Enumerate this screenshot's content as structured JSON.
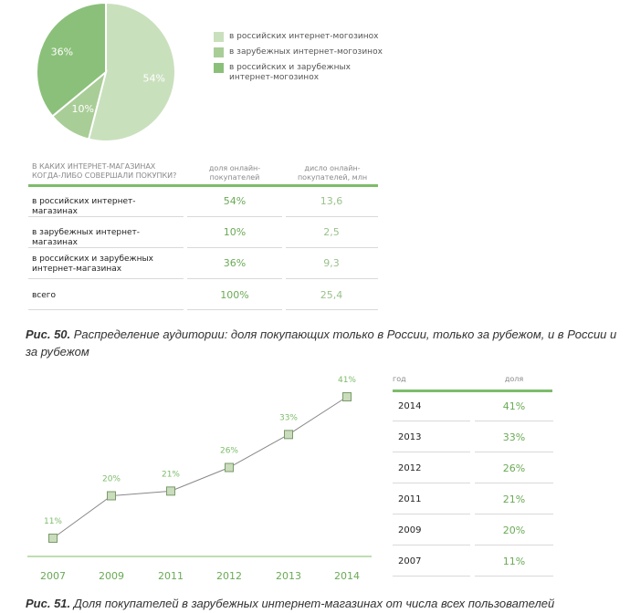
{
  "colors": {
    "slice_russian": "#c9e0bd",
    "slice_foreign": "#a9cd97",
    "slice_both": "#8bc07a",
    "accent": "#7cbc6a",
    "line": "#888888"
  },
  "legend": [
    {
      "label": "в российских интернет-могозинох"
    },
    {
      "label": "в зарубежных интернет-могозинох"
    },
    {
      "label": "в российских и зарубежных интернет-могозинох"
    }
  ],
  "table1": {
    "header": {
      "question": "в каких интернет-магазинах когда-либо совершали покупки?",
      "share": "доля онлайн-покупателей",
      "count": "дисло онлайн-покупателей, млн"
    },
    "rows": [
      {
        "label": "в российских интернет-магазинах",
        "share": "54%",
        "count": "13,6"
      },
      {
        "label": "в зарубежных интернет-магазинах",
        "share": "10%",
        "count": "2,5"
      },
      {
        "label": "в российских и зарубежных интернет-магазинах",
        "share": "36%",
        "count": "9,3"
      },
      {
        "label": "всего",
        "share": "100%",
        "count": "25,4"
      }
    ]
  },
  "caption1": {
    "prefix": "Рис. 50.",
    "text": " Распределение аудитории: доля покупающих только в России, только за рубежом, и в России и за рубежом"
  },
  "table2": {
    "header": {
      "year": "год",
      "share": "доля"
    },
    "rows": [
      {
        "year": "2014",
        "share": "41%"
      },
      {
        "year": "2013",
        "share": "33%"
      },
      {
        "year": "2012",
        "share": "26%"
      },
      {
        "year": "2011",
        "share": "21%"
      },
      {
        "year": "2009",
        "share": "20%"
      },
      {
        "year": "2007",
        "share": "11%"
      }
    ]
  },
  "caption2": {
    "prefix": "Рис. 51.",
    "text": " Доля покупателей в зарубежных интернет-магазинах от числа всех пользователей"
  },
  "chart_data": [
    {
      "type": "pie",
      "slices": [
        {
          "label": "в российских интернет-могозинох",
          "value": 54,
          "value_label": "54%"
        },
        {
          "label": "в зарубежных интернет-могозинох",
          "value": 10,
          "value_label": "10%"
        },
        {
          "label": "в российских и зарубежных интернет-могозинох",
          "value": 36,
          "value_label": "36%"
        }
      ],
      "legend_position": "right"
    },
    {
      "type": "line",
      "categories": [
        "2007",
        "2009",
        "2011",
        "2012",
        "2013",
        "2014"
      ],
      "values": [
        11,
        20,
        21,
        26,
        33,
        41
      ],
      "data_labels": [
        "11%",
        "20%",
        "21%",
        "26%",
        "33%",
        "41%"
      ],
      "ylim": [
        0,
        45
      ],
      "grid": false
    }
  ]
}
